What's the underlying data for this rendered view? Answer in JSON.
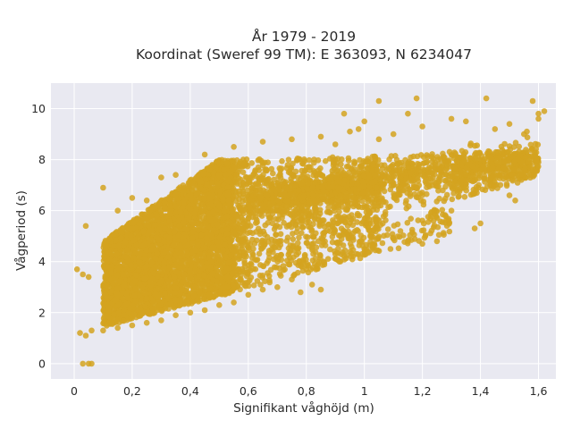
{
  "chart_data": {
    "type": "scatter",
    "title_line1": "År 1979 - 2019",
    "title_line2": "Koordinat (Sweref 99 TM): E 363093, N 6234047",
    "xlabel": "Signifikant våghöjd (m)",
    "ylabel": "Vågperiod (s)",
    "xlim": [
      -0.08,
      1.66
    ],
    "ylim": [
      -0.6,
      11
    ],
    "x_ticks": [
      0,
      0.2,
      0.4,
      0.6,
      0.8,
      1,
      1.2,
      1.4,
      1.6
    ],
    "x_tick_labels": [
      "0",
      "0,2",
      "0,4",
      "0,6",
      "0,8",
      "1",
      "1,2",
      "1,4",
      "1,6"
    ],
    "y_ticks": [
      0,
      2,
      4,
      6,
      8,
      10
    ],
    "y_tick_labels": [
      "0",
      "2",
      "4",
      "6",
      "8",
      "10"
    ],
    "grid": true,
    "marker_color": "#d4a320",
    "plot_background": "#e9e9f1",
    "series": [
      {
        "points": [
          [
            0.03,
            0.0
          ],
          [
            0.05,
            0.0
          ],
          [
            0.06,
            0.0
          ],
          [
            0.01,
            3.7
          ],
          [
            0.03,
            3.5
          ],
          [
            0.05,
            3.4
          ],
          [
            0.02,
            1.2
          ],
          [
            0.04,
            1.1
          ],
          [
            0.06,
            1.3
          ],
          [
            0.04,
            5.4
          ],
          [
            0.1,
            6.9
          ],
          [
            0.15,
            6.0
          ],
          [
            0.2,
            6.5
          ],
          [
            0.25,
            6.4
          ],
          [
            0.3,
            7.3
          ],
          [
            0.35,
            7.4
          ],
          [
            0.45,
            8.2
          ],
          [
            0.55,
            8.5
          ],
          [
            0.65,
            8.7
          ],
          [
            0.75,
            8.8
          ],
          [
            0.85,
            8.9
          ],
          [
            0.9,
            8.6
          ],
          [
            0.95,
            9.1
          ],
          [
            1.0,
            9.5
          ],
          [
            1.05,
            8.8
          ],
          [
            1.1,
            9.0
          ],
          [
            1.15,
            9.8
          ],
          [
            1.18,
            10.4
          ],
          [
            1.05,
            10.3
          ],
          [
            0.93,
            9.8
          ],
          [
            0.98,
            9.2
          ],
          [
            1.2,
            9.3
          ],
          [
            1.3,
            9.6
          ],
          [
            1.35,
            9.5
          ],
          [
            1.42,
            10.4
          ],
          [
            1.45,
            9.2
          ],
          [
            1.5,
            9.4
          ],
          [
            1.55,
            9.0
          ],
          [
            1.58,
            10.3
          ],
          [
            1.6,
            9.8
          ],
          [
            1.62,
            9.9
          ],
          [
            1.6,
            9.6
          ],
          [
            1.56,
            9.1
          ],
          [
            1.4,
            5.5
          ],
          [
            1.38,
            5.3
          ],
          [
            1.3,
            6.0
          ],
          [
            1.25,
            4.8
          ],
          [
            1.2,
            4.7
          ],
          [
            1.15,
            4.8
          ],
          [
            1.1,
            4.9
          ],
          [
            1.0,
            4.5
          ],
          [
            0.9,
            4.3
          ],
          [
            0.8,
            3.7
          ],
          [
            0.75,
            3.3
          ],
          [
            0.7,
            3.0
          ],
          [
            0.65,
            2.9
          ],
          [
            0.6,
            2.7
          ],
          [
            0.55,
            2.4
          ],
          [
            0.5,
            2.3
          ],
          [
            0.45,
            2.1
          ],
          [
            0.4,
            2.0
          ],
          [
            0.35,
            1.9
          ],
          [
            0.3,
            1.7
          ],
          [
            0.25,
            1.6
          ],
          [
            0.2,
            1.5
          ],
          [
            0.15,
            1.4
          ],
          [
            0.1,
            1.3
          ],
          [
            0.82,
            3.1
          ],
          [
            0.85,
            2.9
          ],
          [
            0.78,
            2.8
          ],
          [
            1.5,
            6.6
          ],
          [
            1.52,
            6.4
          ],
          [
            1.45,
            7.0
          ]
        ]
      }
    ]
  }
}
